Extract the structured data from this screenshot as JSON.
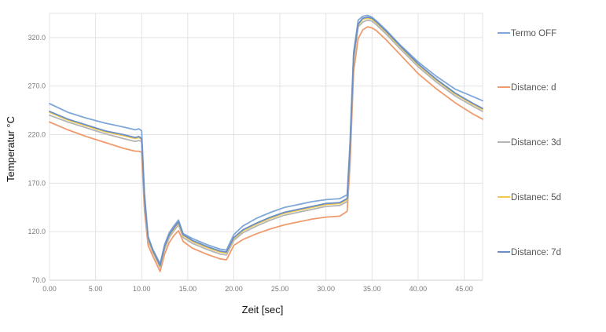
{
  "chart_data": {
    "type": "line",
    "xlabel": "Zeit [sec]",
    "ylabel": "Temperatur °C",
    "xlim": [
      0,
      47
    ],
    "ylim": [
      70,
      345
    ],
    "x_ticks": [
      0,
      5,
      10,
      15,
      20,
      25,
      30,
      35,
      40,
      45
    ],
    "x_tick_labels": [
      "0.00",
      "5.00",
      "10.00",
      "15.00",
      "20.00",
      "25.00",
      "30.00",
      "35.00",
      "40.00",
      "45.00"
    ],
    "y_ticks": [
      70,
      120,
      170,
      220,
      270,
      320
    ],
    "y_tick_labels": [
      "70.0",
      "120.0",
      "170.0",
      "220.0",
      "270.0",
      "320.0"
    ],
    "grid": true,
    "legend_position": "right",
    "x": [
      0,
      2,
      4,
      6,
      8,
      9.3,
      9.7,
      10.0,
      10.3,
      10.7,
      11.2,
      12.0,
      12.5,
      13.0,
      13.5,
      14.0,
      14.5,
      15.5,
      17.0,
      18.5,
      19.2,
      20.0,
      21.0,
      22.5,
      24.0,
      25.5,
      27.0,
      28.5,
      30.0,
      31.5,
      32.3,
      32.6,
      33.0,
      33.5,
      34.0,
      34.5,
      35.0,
      35.5,
      36.5,
      38.0,
      40.0,
      42.0,
      44.0,
      46.0,
      47.0
    ],
    "series": [
      {
        "name": "Termo OFF",
        "color": "#7fa7d8",
        "values": [
          252,
          243,
          237,
          232,
          228,
          225,
          226,
          224,
          160,
          115,
          102,
          87,
          107,
          119,
          126,
          132,
          118,
          113,
          107,
          102,
          101,
          117,
          126,
          134,
          140,
          145,
          148,
          151,
          153,
          154,
          158,
          210,
          305,
          338,
          342,
          343,
          341,
          337,
          328,
          313,
          295,
          280,
          267,
          259,
          255
        ]
      },
      {
        "name": "Distance: d",
        "color": "#ef9b6e",
        "values": [
          233,
          225,
          218,
          212,
          206,
          203,
          203,
          202,
          142,
          106,
          95,
          79,
          97,
          109,
          116,
          121,
          110,
          103,
          97,
          92,
          91,
          106,
          112,
          118,
          123,
          127,
          130,
          133,
          135,
          136,
          141,
          187,
          285,
          319,
          328,
          331,
          330,
          327,
          318,
          303,
          283,
          267,
          253,
          241,
          236
        ]
      },
      {
        "name": "Distance: 3d",
        "color": "#b5b5b5",
        "values": [
          240,
          233,
          227,
          221,
          216,
          213,
          214,
          213,
          150,
          111,
          99,
          83,
          102,
          114,
          121,
          127,
          114,
          108,
          102,
          97,
          96,
          111,
          119,
          126,
          132,
          137,
          140,
          143,
          146,
          147,
          151,
          200,
          297,
          331,
          336,
          338,
          337,
          333,
          324,
          309,
          290,
          274,
          260,
          249,
          244
        ]
      },
      {
        "name": "Distanec: 5d",
        "color": "#f3c94d",
        "values": [
          243,
          235,
          229,
          223,
          219,
          216,
          217,
          215,
          153,
          113,
          100,
          84,
          104,
          116,
          123,
          129,
          116,
          110,
          104,
          99,
          98,
          113,
          121,
          128,
          134,
          139,
          142,
          145,
          148,
          149,
          153,
          203,
          300,
          333,
          339,
          340,
          339,
          335,
          326,
          311,
          292,
          276,
          262,
          251,
          246
        ]
      },
      {
        "name": "Distance: 7d",
        "color": "#6a8fc5",
        "values": [
          244,
          236,
          230,
          224,
          220,
          217,
          218,
          216,
          154,
          114,
          101,
          85,
          105,
          117,
          124,
          130,
          117,
          111,
          105,
          100,
          99,
          114,
          122,
          129,
          135,
          140,
          143,
          146,
          149,
          150,
          154,
          204,
          301,
          334,
          340,
          341,
          340,
          336,
          327,
          312,
          293,
          277,
          263,
          252,
          247
        ]
      }
    ]
  }
}
